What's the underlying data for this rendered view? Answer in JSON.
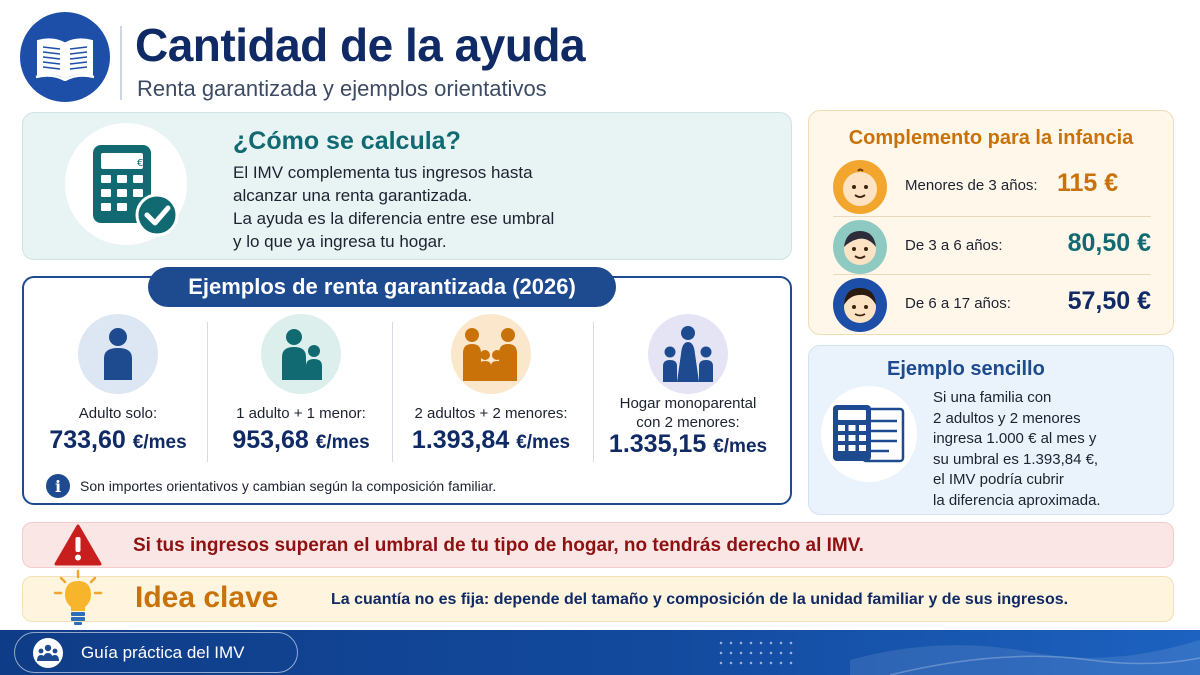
{
  "header": {
    "title": "Cantidad de la ayuda",
    "subtitle": "Renta garantizada y ejemplos orientativos",
    "icon": "book-icon"
  },
  "calc": {
    "heading": "¿Cómo se calcula?",
    "text_1": "El IMV complementa tus ingresos hasta",
    "text_2": "alcanzar una renta garantizada.",
    "text_3": "La ayuda es la diferencia entre ese umbral",
    "text_4": "y lo que ya ingresa tu hogar.",
    "icon": "calculator-check-icon"
  },
  "examples": {
    "title": "Ejemplos de renta garantizada (2026)",
    "unit": "€/mes",
    "items": [
      {
        "label": "Adulto solo:",
        "value": "733,60",
        "icon": "single-adult-icon"
      },
      {
        "label": "1 adulto + 1 menor:",
        "value": "953,68",
        "icon": "adult-child-icon"
      },
      {
        "label": "2 adultos + 2 menores:",
        "value": "1.393,84",
        "icon": "family-four-icon"
      },
      {
        "label_1": "Hogar monoparental",
        "label_2": "con 2 menores:",
        "value": "1.335,15",
        "icon": "single-parent-family-icon"
      }
    ],
    "note": "Son importes orientativos y cambian según la composición familiar.",
    "note_icon": "info-icon"
  },
  "complement": {
    "heading": "Complemento para la infancia",
    "rows": [
      {
        "label": "Menores de 3 años:",
        "value": "115 €",
        "color": "#c9720a",
        "icon": "baby-face-icon"
      },
      {
        "label": "De 3 a 6 años:",
        "value": "80,50 €",
        "color": "#116a72",
        "icon": "child-face-icon"
      },
      {
        "label": "De 6 a 17 años:",
        "value": "57,50 €",
        "color": "#102a66",
        "icon": "teen-face-icon"
      }
    ]
  },
  "simple_example": {
    "heading": "Ejemplo sencillo",
    "lines": [
      "Si una familia con",
      "2 adultos y 2 menores",
      "ingresa 1.000 € al mes y",
      "su umbral es 1.393,84 €,",
      "el IMV podría cubrir",
      "la diferencia aproximada."
    ],
    "icon": "calculator-document-icon"
  },
  "warning": {
    "text": "Si tus ingresos superan el umbral de tu tipo de hogar, no tendrás derecho al IMV.",
    "icon": "warning-icon"
  },
  "key_idea": {
    "title": "Idea clave",
    "text": "La cuantía no es fija: depende del tamaño y composición de la unidad familiar y de sus ingresos.",
    "icon": "lightbulb-icon"
  },
  "footer": {
    "label": "Guía práctica del IMV",
    "icon": "people-icon"
  },
  "colors": {
    "navy": "#102a66",
    "teal": "#116a72",
    "orange": "#c9720a",
    "warning_red": "#8f1111"
  }
}
